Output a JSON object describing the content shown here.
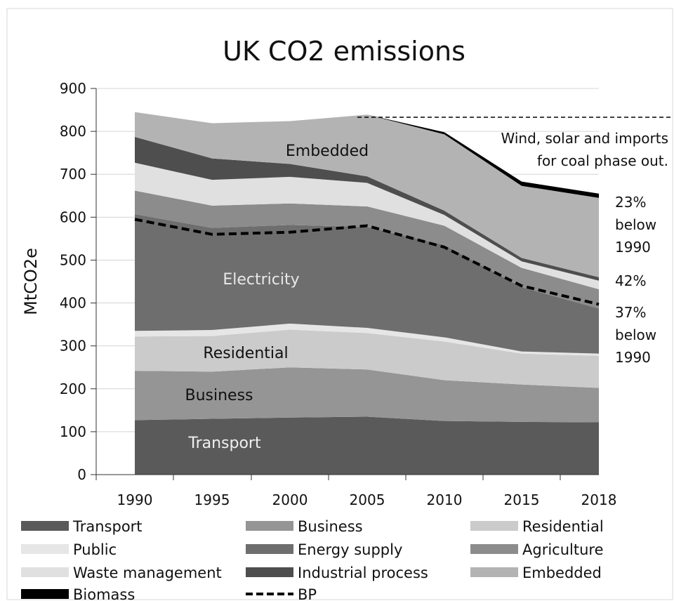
{
  "chart_data": {
    "type": "area",
    "title": "UK CO2 emissions",
    "ylabel": "MtCO2e",
    "xlabel": "",
    "x": [
      "1990",
      "1995",
      "2000",
      "2005",
      "2010",
      "2015",
      "2018"
    ],
    "ylim": [
      0,
      900
    ],
    "yticks": [
      "0",
      "100",
      "200",
      "300",
      "400",
      "500",
      "600",
      "700",
      "800",
      "900"
    ],
    "grid": true,
    "legend_position": "bottom",
    "series": [
      {
        "name": "Transport",
        "color": "#5a5a5a",
        "values": [
          127,
          130,
          133,
          135,
          125,
          123,
          122
        ]
      },
      {
        "name": "Business",
        "color": "#959595",
        "values": [
          115,
          110,
          117,
          110,
          95,
          87,
          80
        ]
      },
      {
        "name": "Residential",
        "color": "#cbcbcb",
        "values": [
          80,
          83,
          88,
          85,
          90,
          72,
          75
        ]
      },
      {
        "name": "Public",
        "color": "#e6e6e6",
        "values": [
          13,
          14,
          14,
          12,
          10,
          5,
          5
        ]
      },
      {
        "name": "Energy supply",
        "color": "#6e6e6e",
        "values": [
          272,
          238,
          230,
          235,
          215,
          150,
          105
        ]
      },
      {
        "name": "Agriculture",
        "color": "#8c8c8c",
        "values": [
          55,
          52,
          50,
          48,
          45,
          45,
          45
        ]
      },
      {
        "name": "Waste management",
        "color": "#e0e0e0",
        "values": [
          65,
          60,
          62,
          55,
          25,
          15,
          20
        ]
      },
      {
        "name": "Industrial process",
        "color": "#4e4e4e",
        "values": [
          60,
          50,
          30,
          15,
          10,
          8,
          8
        ]
      },
      {
        "name": "Embedded",
        "color": "#b3b3b3",
        "values": [
          58,
          82,
          100,
          144,
          178,
          168,
          185
        ]
      },
      {
        "name": "Biomass",
        "color": "#000000",
        "values": [
          0,
          0,
          0,
          0,
          5,
          10,
          10
        ]
      }
    ],
    "bp": {
      "name": "BP",
      "values": [
        595,
        560,
        565,
        580,
        530,
        440,
        397
      ]
    },
    "dashed_reference": {
      "from_x": "2005",
      "value": 833
    },
    "area_labels": {
      "transport": "Transport",
      "business": "Business",
      "residential": "Residential",
      "electricity": "Electricity",
      "embedded": "Embedded"
    },
    "annotations": {
      "wind_line1": "Wind, solar and imports",
      "wind_line2": "for coal phase out.",
      "pct23_line1": "23%",
      "pct23_line2": "below",
      "pct23_line3": "1990",
      "pct42": "42%",
      "pct37_line1": "37%",
      "pct37_line2": "below",
      "pct37_line3": "1990"
    }
  }
}
